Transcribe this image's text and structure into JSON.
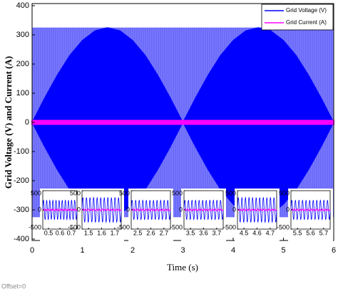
{
  "chart_data": {
    "type": "envelope",
    "xlabel": "Time (s)",
    "ylabel": "Grid Voltage (V) and Current (A)",
    "footnote": "Offset=0",
    "xlim": [
      0,
      6
    ],
    "xticks": [
      0,
      1,
      2,
      3,
      4,
      5,
      6
    ],
    "ylim": [
      -400,
      400
    ],
    "yticks": [
      -400,
      -300,
      -200,
      -100,
      0,
      100,
      200,
      300,
      400
    ],
    "voltage_range": [
      -325,
      325
    ],
    "x": [
      0,
      0.25,
      0.5,
      0.75,
      1,
      1.25,
      1.5,
      1.75,
      2,
      2.25,
      2.5,
      2.75,
      3,
      3.25,
      3.5,
      3.75,
      4,
      4.25,
      4.5,
      4.75,
      5,
      5.25,
      5.5,
      5.75,
      6
    ],
    "series": [
      {
        "name": "Grid Voltage (V)",
        "color": "#0000ff",
        "values": [
          0,
          84,
          162,
          230,
          281,
          314,
          325,
          314,
          281,
          230,
          162,
          84,
          0,
          84,
          162,
          230,
          281,
          314,
          325,
          314,
          281,
          230,
          162,
          84,
          0
        ]
      },
      {
        "name": "Grid Current (A)",
        "color": "#ff00ff",
        "values": [
          6,
          6,
          6,
          6,
          6,
          6,
          6,
          6,
          6,
          6,
          6,
          6,
          6,
          6,
          6,
          6,
          6,
          6,
          6,
          6,
          6,
          6,
          6,
          6,
          6
        ]
      }
    ],
    "insets": [
      {
        "xlim": [
          0.45,
          0.75
        ],
        "xticks": [
          0.5,
          0.6,
          0.7
        ],
        "ylim": [
          -500,
          500
        ],
        "yticks": [
          -500,
          0,
          500
        ],
        "values": [
          250,
          20
        ]
      },
      {
        "xlim": [
          1.45,
          1.75
        ],
        "xticks": [
          1.5,
          1.6,
          1.7
        ],
        "ylim": [
          -500,
          500
        ],
        "yticks": [
          -500,
          0,
          500
        ],
        "values": [
          320,
          20
        ]
      },
      {
        "xlim": [
          2.45,
          2.75
        ],
        "xticks": [
          2.5,
          2.6,
          2.7
        ],
        "ylim": [
          -500,
          500
        ],
        "yticks": [
          -500,
          0,
          500
        ],
        "values": [
          250,
          20
        ]
      },
      {
        "xlim": [
          3.45,
          3.75
        ],
        "xticks": [
          3.5,
          3.6,
          3.7
        ],
        "ylim": [
          -500,
          500
        ],
        "yticks": [
          -500,
          0,
          500
        ],
        "values": [
          250,
          20
        ]
      },
      {
        "xlim": [
          4.45,
          4.75
        ],
        "xticks": [
          4.5,
          4.6,
          4.7
        ],
        "ylim": [
          -500,
          500
        ],
        "yticks": [
          -500,
          0,
          500
        ],
        "values": [
          320,
          20
        ]
      },
      {
        "xlim": [
          5.45,
          5.75
        ],
        "xticks": [
          5.5,
          5.6,
          5.7
        ],
        "ylim": [
          -500,
          500
        ],
        "yticks": [
          -500,
          0,
          500
        ],
        "values": [
          250,
          20
        ]
      }
    ]
  }
}
